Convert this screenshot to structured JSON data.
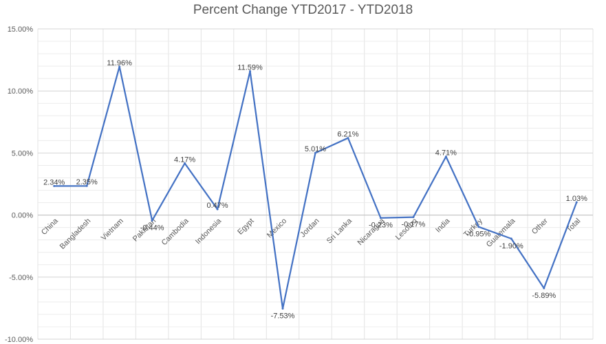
{
  "chart_data": {
    "type": "line",
    "title": "Percent Change YTD2017 - YTD2018",
    "xlabel": "",
    "ylabel": "",
    "categories": [
      "China",
      "Bangladesh",
      "Vietnam",
      "Pakistan",
      "Cambodia",
      "Indonesia",
      "Egypt",
      "Mexico",
      "Jordan",
      "Sri Lanka",
      "Nicaragua",
      "Lesotho",
      "India",
      "Turkey",
      "Guatemala",
      "Other",
      "Total"
    ],
    "series": [
      {
        "values": [
          2.34,
          2.35,
          11.96,
          -0.44,
          4.17,
          0.47,
          11.59,
          -7.53,
          5.01,
          6.21,
          -0.23,
          -0.17,
          4.71,
          -0.95,
          -1.9,
          -5.89,
          1.03
        ],
        "data_labels": [
          "2.34%",
          "2.35%",
          "11.96%",
          "-0.44%",
          "4.17%",
          "0.47%",
          "11.59%",
          "-7.53%",
          "5.01%",
          "6.21%",
          "-0.23%",
          "-0.17%",
          "4.71%",
          "-0.95%",
          "-1.90%",
          "-5.89%",
          "1.03%"
        ],
        "color": "#4472C4"
      }
    ],
    "ylim": [
      -10,
      15
    ],
    "yticks": [
      15,
      10,
      5,
      0,
      -5,
      -10
    ],
    "ytick_labels": [
      "15.00%",
      "10.00%",
      "5.00%",
      "0.00%",
      "-5.00%",
      "-10.00%"
    ],
    "grid": true,
    "legend": "none"
  }
}
